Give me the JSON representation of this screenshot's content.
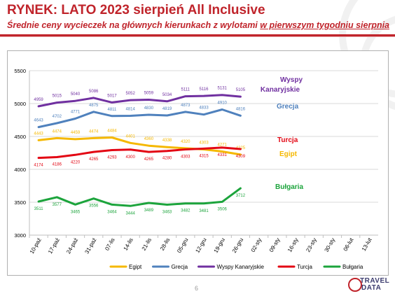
{
  "slide": {
    "title": "RYNEK: LATO 2023 sierpień All Inclusive",
    "subtitle_prefix": "Średnie ceny wycieczek na głównych kierunkach z wylotami ",
    "subtitle_underlined": "w pierwszym tygodniu sierpnia",
    "page_number": "6",
    "logo_line1": "TRAVEL",
    "logo_line2": "DATA"
  },
  "chart_data": {
    "type": "line",
    "title": "",
    "xlabel": "",
    "ylabel": "",
    "ylim": [
      3000,
      5500
    ],
    "yticks": [
      3000,
      3500,
      4000,
      4500,
      5000,
      5500
    ],
    "grid": true,
    "legend_position": "bottom",
    "categories": [
      "10-paź",
      "17-paź",
      "24-paź",
      "31-paź",
      "07-lis",
      "14-lis",
      "21-lis",
      "28-lis",
      "05-gru",
      "12-gru",
      "19-gru",
      "26-gru",
      "02-sty",
      "09-sty",
      "16-sty",
      "23-sty",
      "30-sty",
      "06-lut",
      "13-lut"
    ],
    "series": [
      {
        "name": "Egipt",
        "color": "#f5b800",
        "end_label": "Egipt",
        "values": [
          4443,
          4474,
          4459,
          4474,
          4484,
          4401,
          4360,
          4338,
          4320,
          4303,
          4271,
          4225,
          null,
          null,
          null,
          null,
          null,
          null,
          null
        ]
      },
      {
        "name": "Grecja",
        "color": "#4f81bd",
        "end_label": "Grecja",
        "values": [
          4643,
          4702,
          4771,
          4875,
          4811,
          4814,
          4830,
          4819,
          4873,
          4833,
          4910,
          4816,
          null,
          null,
          null,
          null,
          null,
          null,
          null
        ]
      },
      {
        "name": "Wyspy Kanaryjskie",
        "color": "#7030a0",
        "end_label": "Wyspy Kanaryjskie",
        "values": [
          4959,
          5015,
          5040,
          5086,
          5017,
          5052,
          5059,
          5034,
          5111,
          5116,
          5131,
          5105,
          null,
          null,
          null,
          null,
          null,
          null,
          null
        ]
      },
      {
        "name": "Turcja",
        "color": "#e30613",
        "end_label": "Turcja",
        "values": [
          4174,
          4186,
          4220,
          4265,
          4293,
          4300,
          4265,
          4280,
          4303,
          4315,
          4331,
          4309,
          null,
          null,
          null,
          null,
          null,
          null,
          null
        ]
      },
      {
        "name": "Bułgaria",
        "color": "#1ca43c",
        "end_label": "Bułgaria",
        "values": [
          3511,
          3577,
          3465,
          3556,
          3464,
          3444,
          3489,
          3463,
          3482,
          3481,
          3506,
          3712,
          null,
          null,
          null,
          null,
          null,
          null,
          null
        ]
      }
    ]
  }
}
